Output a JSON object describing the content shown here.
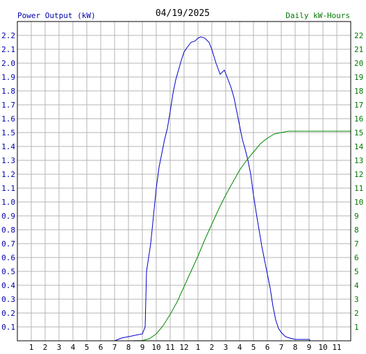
{
  "chart_data": {
    "type": "line",
    "title": "04/19/2025",
    "left_axis_label": "Power Output (kW)",
    "right_axis_label": "Daily kW-Hours",
    "x_tick_labels": [
      "1",
      "2",
      "3",
      "4",
      "5",
      "6",
      "7",
      "8",
      "9",
      "10",
      "11",
      "12",
      "1",
      "2",
      "3",
      "4",
      "5",
      "6",
      "7",
      "8",
      "9",
      "10",
      "11"
    ],
    "y_left_ticks": [
      "0.1",
      "0.2",
      "0.3",
      "0.4",
      "0.5",
      "0.6",
      "0.7",
      "0.8",
      "0.9",
      "1.0",
      "1.1",
      "1.2",
      "1.3",
      "1.4",
      "1.5",
      "1.6",
      "1.7",
      "1.8",
      "1.9",
      "2.0",
      "2.1",
      "2.2"
    ],
    "y_right_ticks": [
      "1",
      "2",
      "3",
      "4",
      "5",
      "6",
      "7",
      "8",
      "9",
      "10",
      "11",
      "12",
      "13",
      "14",
      "15",
      "16",
      "17",
      "18",
      "19",
      "20",
      "21",
      "22"
    ],
    "x_range_hours": [
      0,
      24
    ],
    "y_left_range": [
      0,
      2.3
    ],
    "y_right_range": [
      0,
      23
    ],
    "grid": true,
    "series": [
      {
        "color": "#0000cc",
        "axis": "left",
        "points": [
          [
            0,
            0
          ],
          [
            7,
            0
          ],
          [
            7.5,
            0.02
          ],
          [
            8,
            0.03
          ],
          [
            9,
            0.05
          ],
          [
            9.2,
            0.1
          ],
          [
            9.3,
            0.5
          ],
          [
            9.6,
            0.7
          ],
          [
            9.8,
            0.9
          ],
          [
            10,
            1.1
          ],
          [
            10.2,
            1.25
          ],
          [
            10.4,
            1.35
          ],
          [
            10.6,
            1.45
          ],
          [
            10.8,
            1.53
          ],
          [
            11,
            1.65
          ],
          [
            11.2,
            1.78
          ],
          [
            11.4,
            1.88
          ],
          [
            11.6,
            1.95
          ],
          [
            11.8,
            2.02
          ],
          [
            12,
            2.08
          ],
          [
            12.2,
            2.11
          ],
          [
            12.5,
            2.15
          ],
          [
            12.8,
            2.16
          ],
          [
            13,
            2.18
          ],
          [
            13.2,
            2.19
          ],
          [
            13.5,
            2.18
          ],
          [
            13.8,
            2.15
          ],
          [
            14,
            2.1
          ],
          [
            14.3,
            2.0
          ],
          [
            14.6,
            1.92
          ],
          [
            14.9,
            1.95
          ],
          [
            15.1,
            1.9
          ],
          [
            15.4,
            1.82
          ],
          [
            15.6,
            1.75
          ],
          [
            15.8,
            1.65
          ],
          [
            16,
            1.55
          ],
          [
            16.2,
            1.45
          ],
          [
            16.4,
            1.38
          ],
          [
            16.6,
            1.3
          ],
          [
            16.8,
            1.2
          ],
          [
            17,
            1.05
          ],
          [
            17.2,
            0.92
          ],
          [
            17.4,
            0.8
          ],
          [
            17.6,
            0.68
          ],
          [
            17.8,
            0.58
          ],
          [
            18,
            0.48
          ],
          [
            18.2,
            0.38
          ],
          [
            18.4,
            0.25
          ],
          [
            18.6,
            0.15
          ],
          [
            18.8,
            0.09
          ],
          [
            19,
            0.06
          ],
          [
            19.3,
            0.03
          ],
          [
            19.6,
            0.02
          ],
          [
            20,
            0.01
          ],
          [
            21,
            0.01
          ],
          [
            21.1,
            0
          ],
          [
            24,
            0
          ]
        ]
      },
      {
        "color": "#008800",
        "axis": "right",
        "points": [
          [
            0,
            0
          ],
          [
            8,
            0
          ],
          [
            9,
            0.02
          ],
          [
            9.5,
            0.15
          ],
          [
            10,
            0.5
          ],
          [
            10.5,
            1.1
          ],
          [
            11,
            1.9
          ],
          [
            11.5,
            2.8
          ],
          [
            12,
            3.9
          ],
          [
            12.5,
            5.0
          ],
          [
            13,
            6.1
          ],
          [
            13.5,
            7.3
          ],
          [
            14,
            8.4
          ],
          [
            14.5,
            9.5
          ],
          [
            15,
            10.5
          ],
          [
            15.5,
            11.4
          ],
          [
            16,
            12.3
          ],
          [
            16.5,
            13.0
          ],
          [
            17,
            13.6
          ],
          [
            17.5,
            14.2
          ],
          [
            18,
            14.6
          ],
          [
            18.5,
            14.9
          ],
          [
            19,
            15.0
          ],
          [
            19.5,
            15.1
          ],
          [
            20,
            15.1
          ],
          [
            24,
            15.1
          ]
        ]
      }
    ]
  }
}
